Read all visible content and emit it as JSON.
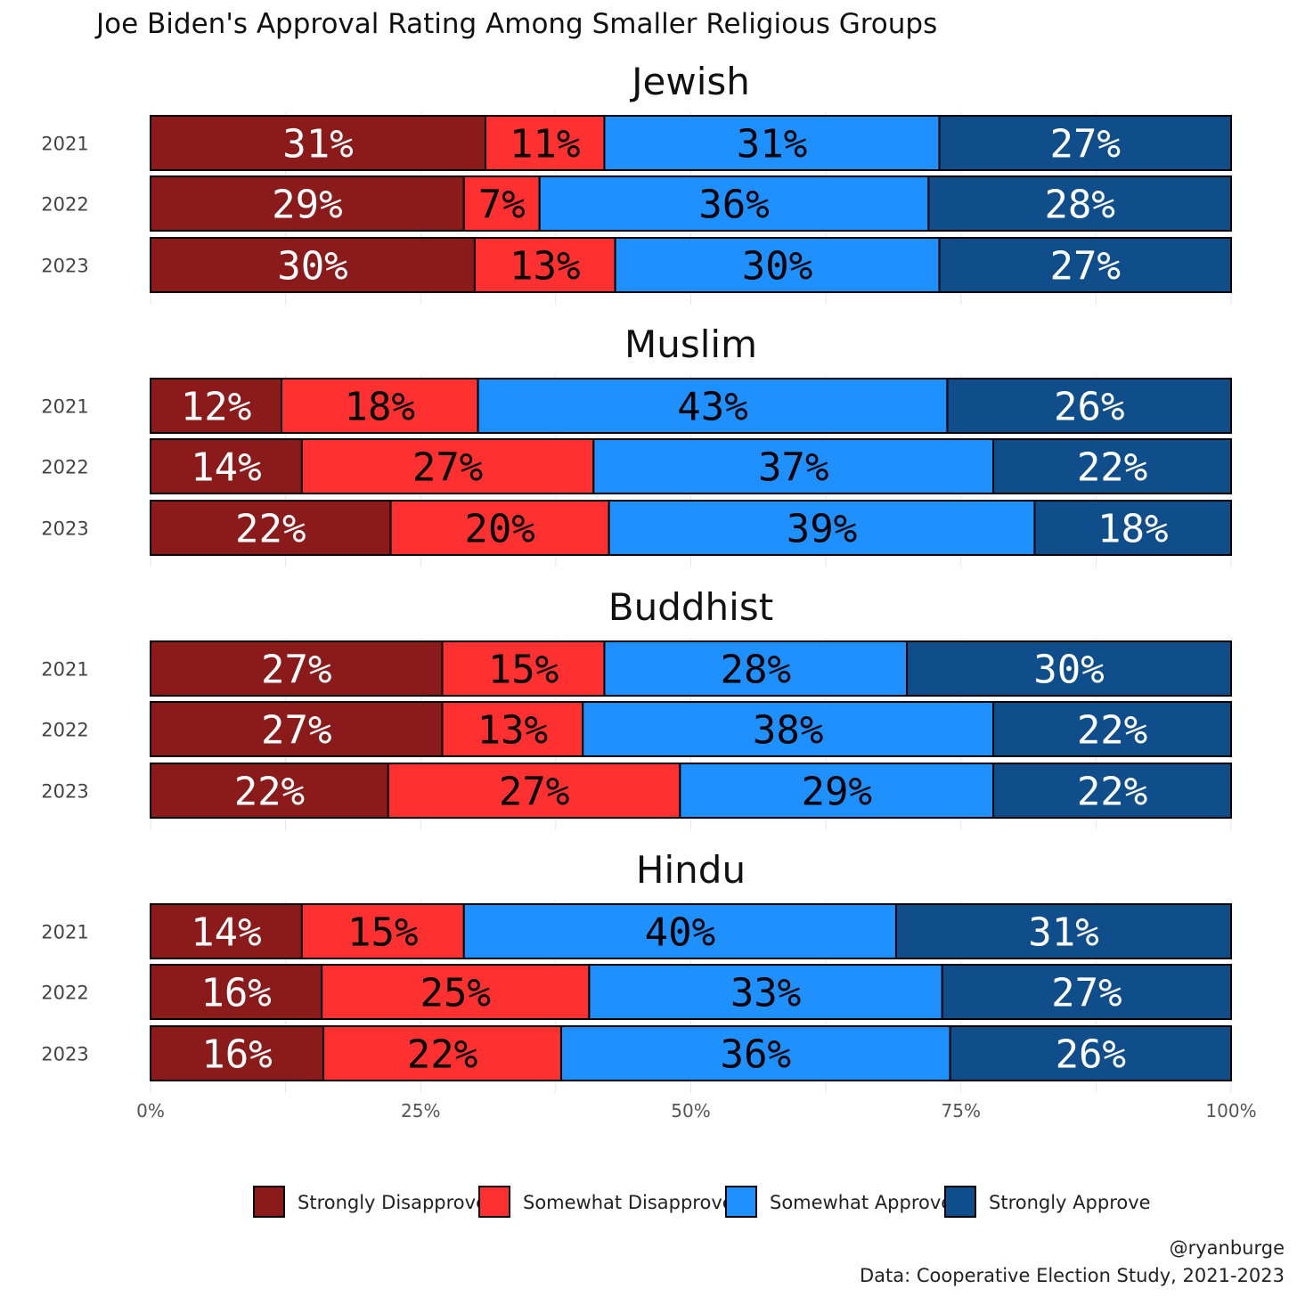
{
  "chart_data": {
    "type": "bar",
    "orientation": "horizontal",
    "stacked": true,
    "title": "Joe Biden's Approval Rating Among Smaller Religious Groups",
    "caption": [
      "@ryanburge",
      "Data: Cooperative Election Study, 2021-2023"
    ],
    "xlim": [
      0,
      100
    ],
    "xticks": [
      "0%",
      "25%",
      "50%",
      "75%",
      "100%"
    ],
    "grid": true,
    "legend_position": "bottom",
    "series_names": [
      "Strongly Disapprove",
      "Somewhat Disapprove",
      "Somewhat Approve",
      "Strongly Approve"
    ],
    "colors": [
      "#8B1A1A",
      "#FF3030",
      "#1E90FF",
      "#104E8B"
    ],
    "label_colors": [
      "#ffffff",
      "#000000",
      "#000000",
      "#ffffff"
    ],
    "panels": [
      {
        "name": "Jewish",
        "rows": [
          {
            "year": "2021",
            "values": [
              31,
              11,
              31,
              27
            ]
          },
          {
            "year": "2022",
            "values": [
              29,
              7,
              36,
              28
            ]
          },
          {
            "year": "2023",
            "values": [
              30,
              13,
              30,
              27
            ]
          }
        ]
      },
      {
        "name": "Muslim",
        "rows": [
          {
            "year": "2021",
            "values": [
              12,
              18,
              43,
              26
            ]
          },
          {
            "year": "2022",
            "values": [
              14,
              27,
              37,
              22
            ]
          },
          {
            "year": "2023",
            "values": [
              22,
              20,
              39,
              18
            ]
          }
        ]
      },
      {
        "name": "Buddhist",
        "rows": [
          {
            "year": "2021",
            "values": [
              27,
              15,
              28,
              30
            ]
          },
          {
            "year": "2022",
            "values": [
              27,
              13,
              38,
              22
            ]
          },
          {
            "year": "2023",
            "values": [
              22,
              27,
              29,
              22
            ]
          }
        ]
      },
      {
        "name": "Hindu",
        "rows": [
          {
            "year": "2021",
            "values": [
              14,
              15,
              40,
              31
            ]
          },
          {
            "year": "2022",
            "values": [
              16,
              25,
              33,
              27
            ]
          },
          {
            "year": "2023",
            "values": [
              16,
              22,
              36,
              26
            ]
          }
        ]
      }
    ]
  }
}
